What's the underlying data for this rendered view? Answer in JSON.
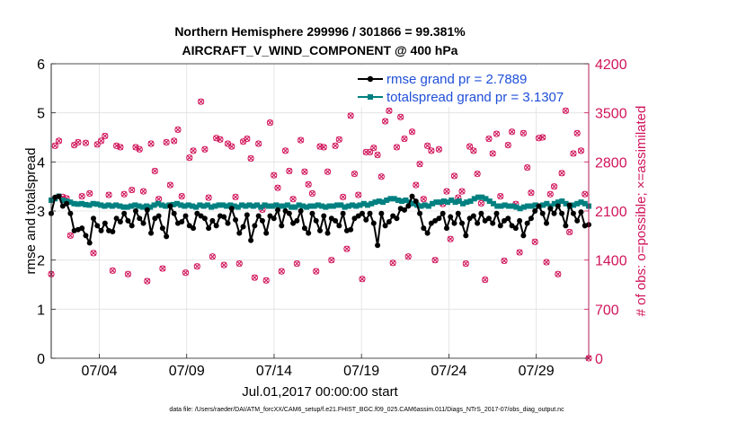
{
  "chart_data": {
    "type": "line",
    "title": "Northern Hemisphere 299996 / 301866 = 99.381%",
    "subtitle": "AIRCRAFT_V_WIND_COMPONENT @ 400 hPa",
    "xlabel": "Jul.01,2017 00:00:00 start",
    "ylabel_left": "rmse and totalspread",
    "ylabel_right": "# of obs: o=possible; ×=assimilated",
    "footer": "data file: /Users/raeder/DAI/ATM_forcXX/CAM6_setup/f.e21.FHIST_BGC.f09_025.CAM6assim.011/Diags_NTrS_2017-07/obs_diag_output.nc",
    "x_range": [
      1.25,
      32.0
    ],
    "ylim_left": [
      0,
      6
    ],
    "ylim_right": [
      0,
      4200
    ],
    "y_ticks_left": [
      "0",
      "1",
      "2",
      "3",
      "4",
      "5",
      "6"
    ],
    "y_ticks_right": [
      "0",
      "700",
      "1400",
      "2100",
      "2800",
      "3500",
      "4200"
    ],
    "x_ticks": [
      {
        "x": 4,
        "label": "07/04"
      },
      {
        "x": 9,
        "label": "07/09"
      },
      {
        "x": 14,
        "label": "07/14"
      },
      {
        "x": 19,
        "label": "07/19"
      },
      {
        "x": 24,
        "label": "07/24"
      },
      {
        "x": 29,
        "label": "07/29"
      }
    ],
    "grid": true,
    "series": [
      {
        "name": "rmse grand pr = 2.7889",
        "color": "#000000",
        "marker": "dot",
        "values": [
          2.95,
          3.28,
          3.3,
          3.1,
          3.15,
          2.95,
          2.6,
          2.62,
          2.65,
          2.5,
          2.35,
          2.85,
          2.7,
          2.6,
          2.75,
          2.6,
          2.58,
          2.85,
          2.78,
          2.95,
          2.8,
          2.7,
          3.0,
          2.85,
          2.75,
          3.02,
          2.55,
          2.85,
          2.9,
          2.65,
          2.48,
          3.1,
          2.95,
          2.75,
          2.78,
          2.9,
          2.7,
          2.65,
          2.95,
          2.9,
          2.85,
          2.65,
          2.8,
          2.7,
          2.9,
          2.88,
          2.75,
          3.05,
          2.82,
          2.55,
          2.68,
          2.92,
          2.4,
          2.7,
          2.9,
          2.8,
          2.55,
          2.9,
          2.85,
          3.02,
          2.7,
          3.0,
          2.95,
          2.75,
          2.8,
          3.0,
          2.65,
          2.55,
          2.95,
          2.8,
          2.6,
          2.9,
          2.55,
          2.85,
          2.8,
          2.7,
          2.95,
          2.6,
          2.62,
          2.85,
          2.9,
          2.95,
          2.82,
          2.95,
          2.75,
          2.3,
          2.95,
          2.7,
          2.78,
          2.9,
          2.85,
          3.05,
          3.02,
          3.1,
          3.3,
          3.2,
          2.95,
          2.65,
          2.55,
          2.75,
          2.8,
          2.85,
          2.95,
          2.65,
          2.88,
          2.75,
          2.95,
          2.75,
          2.5,
          2.85,
          2.9,
          2.75,
          2.95,
          2.8,
          2.85,
          2.75,
          2.95,
          2.7,
          2.8,
          2.85,
          2.7,
          2.65,
          2.8,
          2.5,
          2.75,
          2.85,
          3.0,
          3.1,
          2.95,
          2.75,
          3.05,
          2.95,
          3.1,
          2.95,
          2.7,
          3.12,
          2.95,
          2.8,
          2.98,
          2.7,
          2.72
        ]
      },
      {
        "name": "totalspread grand pr = 3.1307",
        "color": "#008080",
        "marker": "square",
        "values": [
          3.22,
          3.25,
          3.3,
          3.22,
          3.2,
          3.18,
          3.15,
          3.14,
          3.15,
          3.13,
          3.12,
          3.15,
          3.14,
          3.12,
          3.1,
          3.12,
          3.1,
          3.12,
          3.1,
          3.08,
          3.08,
          3.1,
          3.12,
          3.1,
          3.08,
          3.1,
          3.08,
          3.12,
          3.15,
          3.12,
          3.1,
          3.12,
          3.13,
          3.15,
          3.12,
          3.1,
          3.12,
          3.1,
          3.08,
          3.12,
          3.1,
          3.12,
          3.08,
          3.1,
          3.12,
          3.12,
          3.1,
          3.12,
          3.1,
          3.08,
          3.12,
          3.1,
          3.12,
          3.1,
          3.12,
          3.08,
          3.12,
          3.1,
          3.1,
          3.12,
          3.1,
          3.1,
          3.12,
          3.08,
          3.08,
          3.12,
          3.1,
          3.08,
          3.1,
          3.1,
          3.12,
          3.1,
          3.08,
          3.1,
          3.1,
          3.12,
          3.12,
          3.08,
          3.1,
          3.12,
          3.1,
          3.12,
          3.15,
          3.12,
          3.15,
          3.18,
          3.2,
          3.18,
          3.22,
          3.25,
          3.25,
          3.22,
          3.2,
          3.22,
          3.18,
          3.15,
          3.12,
          3.1,
          3.12,
          3.1,
          3.15,
          3.18,
          3.18,
          3.2,
          3.18,
          3.22,
          3.18,
          3.2,
          3.15,
          3.18,
          3.2,
          3.25,
          3.28,
          3.28,
          3.25,
          3.2,
          3.15,
          3.1,
          3.1,
          3.12,
          3.1,
          3.1,
          3.08,
          3.05,
          3.08,
          3.1,
          3.1,
          3.12,
          3.1,
          3.12,
          3.15,
          3.1,
          3.15,
          3.18,
          3.2,
          3.15,
          3.1,
          3.12,
          3.15,
          3.18,
          3.15,
          3.1
        ]
      }
    ],
    "obs_counts": {
      "name": "# of obs",
      "color": "#d0145a",
      "values": [
        1200,
        3030,
        3100,
        2300,
        2280,
        1750,
        3040,
        3080,
        2310,
        3070,
        2350,
        1500,
        3050,
        3100,
        3170,
        2330,
        1250,
        3030,
        3010,
        2340,
        1200,
        2400,
        3010,
        2980,
        2380,
        1100,
        3060,
        2670,
        2270,
        1280,
        3080,
        2470,
        3100,
        3260,
        2310,
        1220,
        2860,
        2960,
        1310,
        3660,
        2980,
        2290,
        1450,
        3140,
        3120,
        1330,
        3060,
        3020,
        2300,
        1350,
        3090,
        3130,
        2850,
        1150,
        3060,
        2120,
        1110,
        3360,
        2610,
        2430,
        1240,
        2960,
        2670,
        2270,
        1350,
        3110,
        2660,
        2480,
        2350,
        1240,
        3020,
        3010,
        2660,
        1400,
        3030,
        3120,
        2300,
        1560,
        3460,
        2630,
        2330,
        1130,
        2940,
        2940,
        3000,
        2900,
        2590,
        3380,
        3530,
        1360,
        3010,
        3440,
        3130,
        1450,
        3230,
        2470,
        2770,
        2270,
        3030,
        2960,
        1400,
        2980,
        2200,
        2380,
        1700,
        2600,
        2290,
        2380,
        1350,
        3020,
        2960,
        2630,
        2210,
        1120,
        3130,
        2920,
        3200,
        2310,
        1390,
        3040,
        3230,
        2200,
        1510,
        3210,
        2720,
        2360,
        1660,
        3140,
        3150,
        1370,
        2340,
        2450,
        1200,
        2640,
        3530,
        1800,
        2920,
        3210,
        2960,
        2340,
        0
      ]
    },
    "legend_position": "top-right"
  }
}
